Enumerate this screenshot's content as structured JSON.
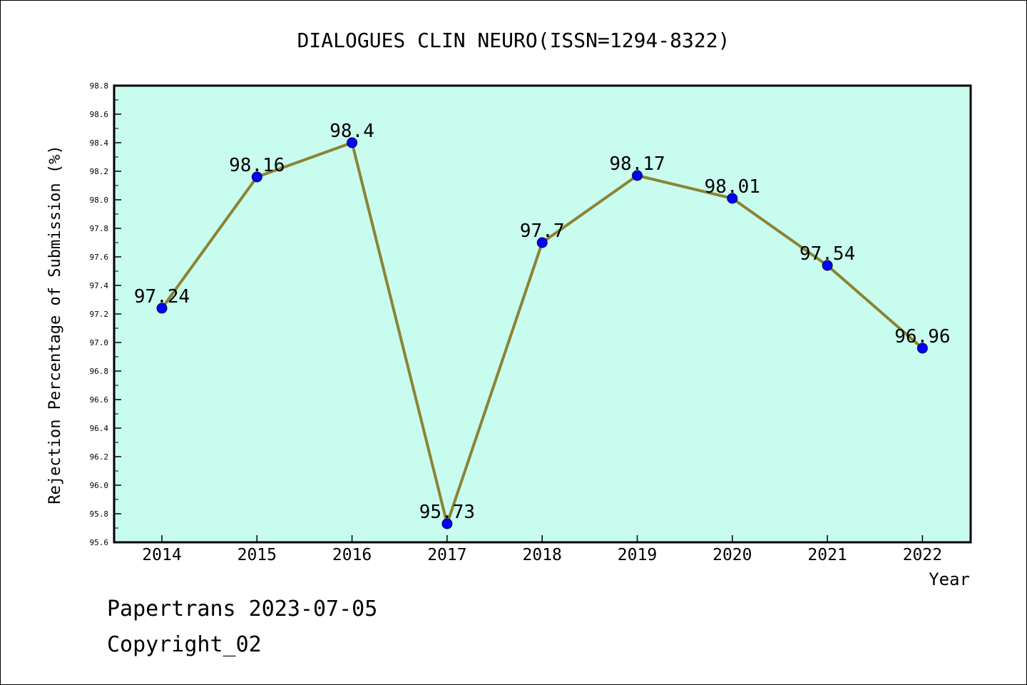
{
  "chart_data": {
    "type": "line",
    "title": "DIALOGUES CLIN NEURO(ISSN=1294-8322)",
    "xlabel": "Year",
    "ylabel": "Rejection Percentage of Submission (%)",
    "categories": [
      "2014",
      "2015",
      "2016",
      "2017",
      "2018",
      "2019",
      "2020",
      "2021",
      "2022"
    ],
    "values": [
      97.24,
      98.16,
      98.4,
      95.73,
      97.7,
      98.17,
      98.01,
      97.54,
      96.96
    ],
    "data_labels": [
      "97.24",
      "98.16",
      "98.4",
      "95.73",
      "97.7",
      "98.17",
      "98.01",
      "97.54",
      "96.96"
    ],
    "ylim": [
      95.6,
      98.8
    ],
    "yticks": [
      "95.6",
      "95.8",
      "96.0",
      "96.2",
      "96.4",
      "96.6",
      "96.8",
      "97.0",
      "97.2",
      "97.4",
      "97.6",
      "97.8",
      "98.0",
      "98.2",
      "98.4",
      "98.6",
      "98.8"
    ],
    "grid": false,
    "colors": {
      "plot_background": "#c8fcee",
      "line": "#8b8434",
      "marker": "#0000ff"
    }
  },
  "footer": {
    "source": "Papertrans 2023-07-05",
    "copyright": "Copyright_02"
  }
}
